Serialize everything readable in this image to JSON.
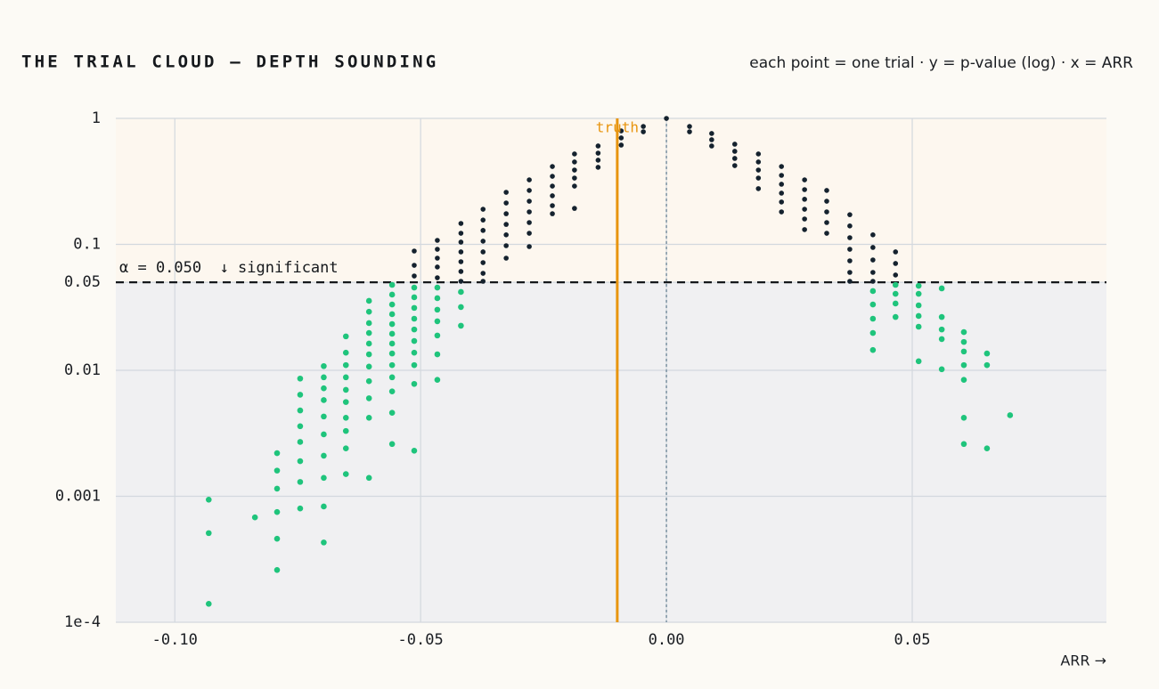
{
  "chart_data": {
    "type": "scatter",
    "title": "THE TRIAL CLOUD — DEPTH SOUNDING",
    "subtitle": "each point = one trial · y = p-value (log) · x = ARR",
    "x_label": "ARR →",
    "log_y": true,
    "grid": true,
    "zero_line": true,
    "xlim": [
      -0.112,
      0.0895
    ],
    "ylim": [
      0.0001,
      1
    ],
    "xticks": [
      {
        "value": -0.1,
        "label": "-0.10"
      },
      -0.05,
      {
        "value": 0,
        "label": "0.00"
      },
      0.05
    ],
    "yticks": [
      1,
      0.1,
      0.05,
      0.01,
      0.001,
      {
        "value": 0.0001,
        "label": "1e-4"
      }
    ],
    "alpha": {
      "value": 0.05,
      "label": "α = 0.050  ↓ significant"
    },
    "truth": {
      "value": -0.01,
      "label": "truth",
      "color": "#e8950f"
    },
    "series": [
      {
        "color": "#1fc47c",
        "x": [
          -0.0931,
          -0.0931,
          -0.0931,
          -0.0837,
          -0.0792,
          -0.0792,
          -0.0792,
          -0.0792,
          -0.0792,
          -0.0792,
          -0.0745,
          -0.0745,
          -0.0745,
          -0.0745,
          -0.0745,
          -0.0745,
          -0.0745,
          -0.0745,
          -0.0697,
          -0.0697,
          -0.0697,
          -0.0697,
          -0.0697,
          -0.0697,
          -0.0697,
          -0.0697,
          -0.0697,
          -0.0697,
          -0.0652,
          -0.0652,
          -0.0652,
          -0.0652,
          -0.0652,
          -0.0652,
          -0.0652,
          -0.0652,
          -0.0652,
          -0.0652,
          -0.0605,
          -0.0605,
          -0.0605,
          -0.0605,
          -0.0605,
          -0.0605,
          -0.0605,
          -0.0605,
          -0.0605,
          -0.0605,
          -0.0605,
          -0.0558,
          -0.0558,
          -0.0558,
          -0.0558,
          -0.0558,
          -0.0558,
          -0.0558,
          -0.0558,
          -0.0558,
          -0.0558,
          -0.0558,
          -0.0558,
          -0.0558,
          -0.0513,
          -0.0513,
          -0.0513,
          -0.0513,
          -0.0513,
          -0.0513,
          -0.0513,
          -0.0513,
          -0.0513,
          -0.0513,
          -0.0466,
          -0.0466,
          -0.0466,
          -0.0466,
          -0.0466,
          -0.0466,
          -0.0466,
          -0.0418,
          -0.0418,
          -0.0418,
          0.042,
          0.042,
          0.042,
          0.042,
          0.042,
          0.0466,
          0.0466,
          0.0466,
          0.0466,
          0.0513,
          0.0513,
          0.0513,
          0.0513,
          0.0513,
          0.0513,
          0.056,
          0.056,
          0.056,
          0.056,
          0.056,
          0.0605,
          0.0605,
          0.0605,
          0.0605,
          0.0605,
          0.0605,
          0.0605,
          0.0652,
          0.0652,
          0.0652,
          0.0699
        ],
        "values": [
          0.00094,
          0.00051,
          0.00014,
          0.00068,
          0.0022,
          0.0016,
          0.00115,
          0.00075,
          0.00046,
          0.00026,
          0.0086,
          0.0064,
          0.0048,
          0.0036,
          0.0027,
          0.0019,
          0.0013,
          0.0008,
          0.0108,
          0.0088,
          0.0072,
          0.0058,
          0.0043,
          0.0031,
          0.0021,
          0.0014,
          0.00083,
          0.00043,
          0.0186,
          0.0138,
          0.011,
          0.0088,
          0.007,
          0.0056,
          0.0042,
          0.0033,
          0.0024,
          0.0015,
          0.0356,
          0.0292,
          0.0237,
          0.0198,
          0.0163,
          0.0134,
          0.0107,
          0.0082,
          0.006,
          0.0042,
          0.0014,
          0.0477,
          0.0399,
          0.0333,
          0.0279,
          0.0233,
          0.0195,
          0.0163,
          0.0136,
          0.011,
          0.0088,
          0.0068,
          0.0046,
          0.0026,
          0.0454,
          0.038,
          0.0313,
          0.0257,
          0.0211,
          0.0171,
          0.0138,
          0.011,
          0.0078,
          0.0023,
          0.0454,
          0.0374,
          0.0303,
          0.0245,
          0.0189,
          0.0134,
          0.0084,
          0.0419,
          0.0318,
          0.0226,
          0.0426,
          0.0333,
          0.0257,
          0.0198,
          0.0145,
          0.0477,
          0.0405,
          0.0339,
          0.0265,
          0.0469,
          0.0405,
          0.0328,
          0.027,
          0.0222,
          0.0118,
          0.0447,
          0.0265,
          0.0211,
          0.0177,
          0.0102,
          0.0201,
          0.0168,
          0.0141,
          0.011,
          0.0084,
          0.0042,
          0.0026,
          0.0136,
          0.011,
          0.0024,
          0.0044
        ]
      },
      {
        "color": "#15222e",
        "x": [
          -0.0513,
          -0.0513,
          -0.0513,
          -0.0466,
          -0.0466,
          -0.0466,
          -0.0466,
          -0.0466,
          -0.0418,
          -0.0418,
          -0.0418,
          -0.0418,
          -0.0418,
          -0.0418,
          -0.0418,
          -0.0373,
          -0.0373,
          -0.0373,
          -0.0373,
          -0.0373,
          -0.0373,
          -0.0373,
          -0.0373,
          -0.0326,
          -0.0326,
          -0.0326,
          -0.0326,
          -0.0326,
          -0.0326,
          -0.0326,
          -0.0279,
          -0.0279,
          -0.0279,
          -0.0279,
          -0.0279,
          -0.0279,
          -0.0279,
          -0.0232,
          -0.0232,
          -0.0232,
          -0.0232,
          -0.0232,
          -0.0232,
          -0.0187,
          -0.0187,
          -0.0187,
          -0.0187,
          -0.0187,
          -0.0187,
          -0.0139,
          -0.0139,
          -0.0139,
          -0.0139,
          -0.0092,
          -0.0092,
          -0.0092,
          -0.0047,
          -0.0047,
          0,
          0.0047,
          0.0047,
          0.0092,
          0.0092,
          0.0092,
          0.0139,
          0.0139,
          0.0139,
          0.0139,
          0.0187,
          0.0187,
          0.0187,
          0.0187,
          0.0187,
          0.0234,
          0.0234,
          0.0234,
          0.0234,
          0.0234,
          0.0234,
          0.0281,
          0.0281,
          0.0281,
          0.0281,
          0.0281,
          0.0281,
          0.0326,
          0.0326,
          0.0326,
          0.0326,
          0.0326,
          0.0373,
          0.0373,
          0.0373,
          0.0373,
          0.0373,
          0.0373,
          0.0373,
          0.042,
          0.042,
          0.042,
          0.042,
          0.042,
          0.0466,
          0.0466,
          0.0466
        ],
        "values": [
          0.0885,
          0.0682,
          0.0561,
          0.1076,
          0.0914,
          0.0777,
          0.0661,
          0.0543,
          0.1466,
          0.1225,
          0.1042,
          0.0871,
          0.0728,
          0.0609,
          0.0509,
          0.19,
          0.156,
          0.129,
          0.106,
          0.0871,
          0.0716,
          0.0589,
          0.0509,
          0.259,
          0.213,
          0.175,
          0.144,
          0.119,
          0.0976,
          0.0777,
          0.325,
          0.268,
          0.22,
          0.181,
          0.149,
          0.1225,
          0.096,
          0.415,
          0.347,
          0.29,
          0.243,
          0.203,
          0.175,
          0.522,
          0.451,
          0.389,
          0.336,
          0.29,
          0.193,
          0.604,
          0.53,
          0.466,
          0.409,
          0.796,
          0.7,
          0.614,
          0.863,
          0.783,
          1,
          0.863,
          0.783,
          0.759,
          0.677,
          0.604,
          0.624,
          0.548,
          0.481,
          0.422,
          0.522,
          0.451,
          0.389,
          0.336,
          0.277,
          0.415,
          0.353,
          0.3,
          0.255,
          0.217,
          0.181,
          0.325,
          0.272,
          0.228,
          0.19,
          0.159,
          0.131,
          0.268,
          0.22,
          0.181,
          0.149,
          0.1225,
          0.172,
          0.14,
          0.113,
          0.0914,
          0.074,
          0.0599,
          0.0509,
          0.119,
          0.0945,
          0.0752,
          0.0599,
          0.0509,
          0.0871,
          0.0705,
          0.0571
        ]
      }
    ]
  }
}
